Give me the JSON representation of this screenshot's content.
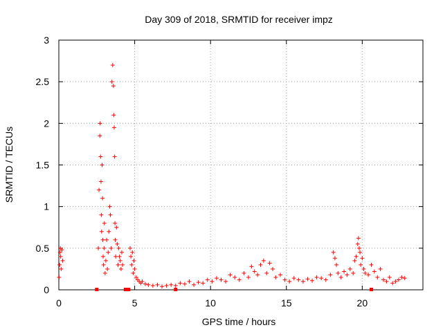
{
  "chart_data": {
    "type": "scatter",
    "title": "Day 309 of 2018, SRMTID for receiver impz",
    "xlabel": "GPS time / hours",
    "ylabel": "SRMTID / TECUs",
    "xlim": [
      0,
      24
    ],
    "ylim": [
      0,
      3
    ],
    "xticks": [
      0,
      5,
      10,
      15,
      20
    ],
    "xtick_labels": [
      "0",
      "5",
      "10",
      "15",
      "20"
    ],
    "yticks": [
      0,
      0.5,
      1,
      1.5,
      2,
      2.5,
      3
    ],
    "ytick_labels": [
      "0",
      "0.5",
      "1",
      "1.5",
      "2",
      "2.5",
      "3"
    ],
    "grid": true,
    "series": [
      {
        "name": "SRMTID",
        "marker": "plus",
        "color": "#ff0000",
        "x": [
          0.02,
          0.05,
          0.08,
          0.1,
          0.12,
          0.15,
          0.2,
          0.25,
          2.6,
          2.65,
          2.7,
          2.72,
          2.75,
          2.78,
          2.8,
          2.82,
          2.85,
          2.88,
          2.9,
          2.92,
          2.95,
          2.98,
          3.0,
          3.05,
          3.1,
          3.15,
          3.2,
          3.25,
          3.3,
          3.35,
          3.4,
          3.45,
          3.5,
          3.55,
          3.6,
          3.62,
          3.65,
          3.68,
          3.7,
          3.72,
          3.75,
          3.8,
          3.85,
          3.9,
          3.95,
          4.0,
          4.05,
          4.1,
          4.15,
          4.2,
          4.7,
          4.75,
          4.8,
          4.85,
          4.9,
          4.95,
          5.0,
          5.1,
          5.2,
          5.3,
          5.4,
          5.5,
          5.7,
          5.9,
          6.2,
          6.5,
          6.8,
          7.1,
          7.4,
          7.7,
          8.0,
          8.3,
          8.6,
          8.9,
          9.2,
          9.5,
          9.8,
          10.1,
          10.4,
          10.7,
          11.0,
          11.3,
          11.6,
          11.9,
          12.2,
          12.5,
          12.7,
          12.9,
          13.1,
          13.3,
          13.5,
          13.7,
          13.9,
          14.1,
          14.3,
          14.6,
          14.9,
          15.2,
          15.5,
          15.8,
          16.1,
          16.4,
          16.7,
          17.0,
          17.3,
          17.6,
          17.9,
          18.1,
          18.2,
          18.3,
          18.4,
          18.6,
          18.8,
          19.0,
          19.2,
          19.4,
          19.5,
          19.6,
          19.7,
          19.75,
          19.8,
          19.85,
          19.9,
          20.0,
          20.1,
          20.2,
          20.4,
          20.6,
          20.8,
          21.0,
          21.2,
          21.4,
          21.6,
          21.8,
          22.0,
          22.2,
          22.4,
          22.6,
          22.8
        ],
        "y": [
          0.15,
          0.3,
          0.45,
          0.5,
          0.4,
          0.25,
          0.48,
          0.35,
          0.5,
          1.2,
          1.85,
          2.0,
          1.6,
          1.3,
          0.9,
          0.7,
          1.5,
          1.1,
          0.6,
          0.4,
          0.3,
          0.5,
          0.8,
          0.2,
          0.35,
          0.6,
          0.25,
          0.45,
          0.7,
          1.0,
          0.9,
          0.5,
          2.5,
          2.7,
          2.45,
          2.1,
          1.95,
          1.6,
          0.8,
          0.6,
          0.4,
          0.75,
          0.55,
          0.3,
          0.5,
          0.4,
          0.35,
          0.25,
          0.45,
          0.3,
          0.5,
          0.4,
          0.3,
          0.45,
          0.2,
          0.35,
          0.25,
          0.15,
          0.12,
          0.1,
          0.08,
          0.1,
          0.07,
          0.06,
          0.05,
          0.06,
          0.04,
          0.05,
          0.06,
          0.05,
          0.08,
          0.07,
          0.1,
          0.06,
          0.09,
          0.08,
          0.12,
          0.1,
          0.14,
          0.12,
          0.1,
          0.18,
          0.15,
          0.12,
          0.2,
          0.15,
          0.28,
          0.22,
          0.18,
          0.3,
          0.35,
          0.2,
          0.32,
          0.25,
          0.15,
          0.18,
          0.12,
          0.1,
          0.14,
          0.12,
          0.1,
          0.13,
          0.11,
          0.15,
          0.14,
          0.12,
          0.18,
          0.45,
          0.38,
          0.3,
          0.2,
          0.15,
          0.22,
          0.18,
          0.25,
          0.2,
          0.35,
          0.4,
          0.55,
          0.62,
          0.5,
          0.45,
          0.3,
          0.38,
          0.25,
          0.2,
          0.18,
          0.3,
          0.22,
          0.15,
          0.25,
          0.12,
          0.1,
          0.15,
          0.08,
          0.1,
          0.12,
          0.15,
          0.14
        ],
        "zero_markers_x": [
          2.5,
          4.4,
          4.5,
          4.6,
          7.7,
          20.6
        ]
      }
    ]
  }
}
